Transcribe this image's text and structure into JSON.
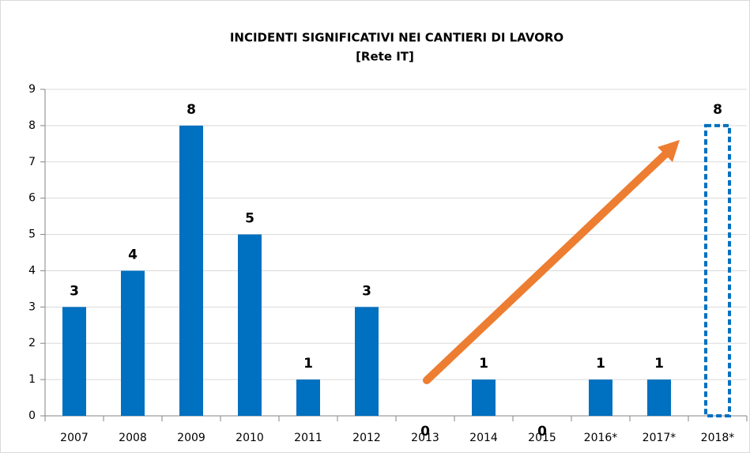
{
  "chart_data": {
    "type": "bar",
    "title": "INCIDENTI SIGNIFICATIVI NEI CANTIERI DI LAVORO",
    "subtitle": "[Rete IT]",
    "categories": [
      "2007",
      "2008",
      "2009",
      "2010",
      "2011",
      "2012",
      "2013",
      "2014",
      "2015",
      "2016*",
      "2017*",
      "2018*"
    ],
    "values": [
      3,
      4,
      8,
      5,
      1,
      3,
      0,
      1,
      0,
      1,
      1,
      8
    ],
    "point_styles": [
      "solid",
      "solid",
      "solid",
      "solid",
      "solid",
      "solid",
      "solid",
      "solid",
      "solid",
      "solid",
      "solid",
      "dashed"
    ],
    "color": "#0070c0",
    "ylim": [
      0,
      9
    ],
    "yticks": [
      0,
      1,
      2,
      3,
      4,
      5,
      6,
      7,
      8,
      9
    ],
    "grid": true
  }
}
